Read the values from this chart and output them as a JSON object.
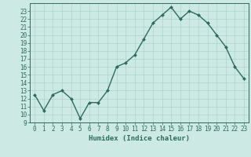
{
  "x": [
    0,
    1,
    2,
    3,
    4,
    5,
    6,
    7,
    8,
    9,
    10,
    11,
    12,
    13,
    14,
    15,
    16,
    17,
    18,
    19,
    20,
    21,
    22,
    23
  ],
  "y": [
    12.5,
    10.5,
    12.5,
    13.0,
    12.0,
    9.5,
    11.5,
    11.5,
    13.0,
    16.0,
    16.5,
    17.5,
    19.5,
    21.5,
    22.5,
    23.5,
    22.0,
    23.0,
    22.5,
    21.5,
    20.0,
    18.5,
    16.0,
    14.5
  ],
  "line_color": "#2e6b5e",
  "marker": "D",
  "marker_size": 2,
  "bg_color": "#cce9e4",
  "grid_color": "#aad4cc",
  "xlabel": "Humidex (Indice chaleur)",
  "ylim": [
    9,
    24
  ],
  "xlim": [
    -0.5,
    23.5
  ],
  "yticks": [
    9,
    10,
    11,
    12,
    13,
    14,
    15,
    16,
    17,
    18,
    19,
    20,
    21,
    22,
    23
  ],
  "xticks": [
    0,
    1,
    2,
    3,
    4,
    5,
    6,
    7,
    8,
    9,
    10,
    11,
    12,
    13,
    14,
    15,
    16,
    17,
    18,
    19,
    20,
    21,
    22,
    23
  ],
  "xlabel_fontsize": 6.5,
  "tick_fontsize": 5.5,
  "line_width": 1.0
}
